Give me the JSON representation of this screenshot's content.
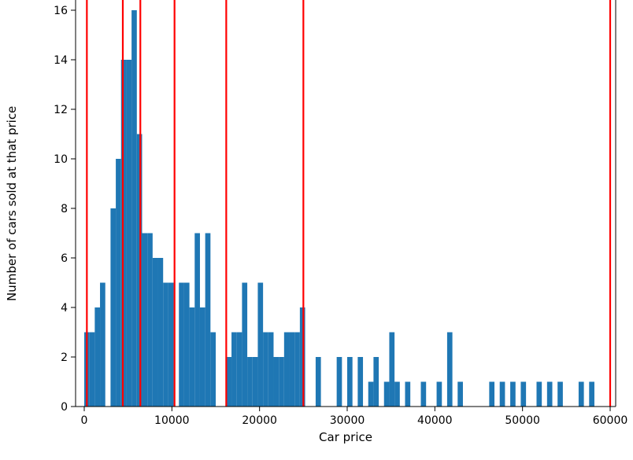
{
  "figure": {
    "kind": "matplotlib-histogram",
    "background": "#ffffff"
  },
  "chart_data": {
    "type": "bar",
    "title": "",
    "xlabel": "Car price",
    "ylabel": "Number of cars sold at that price",
    "grid": false,
    "legend": null,
    "xlim": [
      -1000,
      60650
    ],
    "ylim": [
      0,
      16.45
    ],
    "x_ticks": [
      0,
      10000,
      20000,
      30000,
      40000,
      50000,
      60000
    ],
    "y_ticks": [
      0,
      2,
      4,
      6,
      8,
      10,
      12,
      14,
      16
    ],
    "bin_width": 600,
    "bar_color": "#1f77b4",
    "line_color": "#ff0000",
    "axis_color": "#000000",
    "bars": {
      "starts": [
        0,
        600,
        1200,
        1800,
        3000,
        3600,
        4200,
        4800,
        5400,
        6000,
        6600,
        7200,
        7800,
        8400,
        9000,
        9600,
        10800,
        11400,
        12000,
        12600,
        13200,
        13800,
        14400,
        16200,
        16800,
        17400,
        18000,
        18600,
        19200,
        19800,
        20400,
        21000,
        21600,
        22200,
        22800,
        23400,
        24000,
        24600,
        26400,
        28800,
        30000,
        31200,
        32400,
        33000,
        34200,
        34800,
        35400,
        36600,
        38400,
        40200,
        41400,
        42600,
        46200,
        47400,
        48600,
        49800,
        51600,
        52800,
        54000,
        56400,
        57600
      ],
      "counts": [
        3,
        3,
        4,
        5,
        8,
        10,
        14,
        14,
        16,
        11,
        7,
        7,
        6,
        6,
        5,
        5,
        5,
        5,
        4,
        7,
        4,
        7,
        3,
        2,
        3,
        3,
        5,
        2,
        2,
        5,
        3,
        3,
        2,
        2,
        3,
        3,
        3,
        4,
        2,
        2,
        2,
        2,
        1,
        2,
        1,
        3,
        1,
        1,
        1,
        1,
        3,
        1,
        1,
        1,
        1,
        1,
        1,
        1,
        1,
        1,
        1
      ]
    },
    "red_vlines": [
      300,
      4400,
      6400,
      10300,
      16200,
      25000,
      60000
    ]
  }
}
